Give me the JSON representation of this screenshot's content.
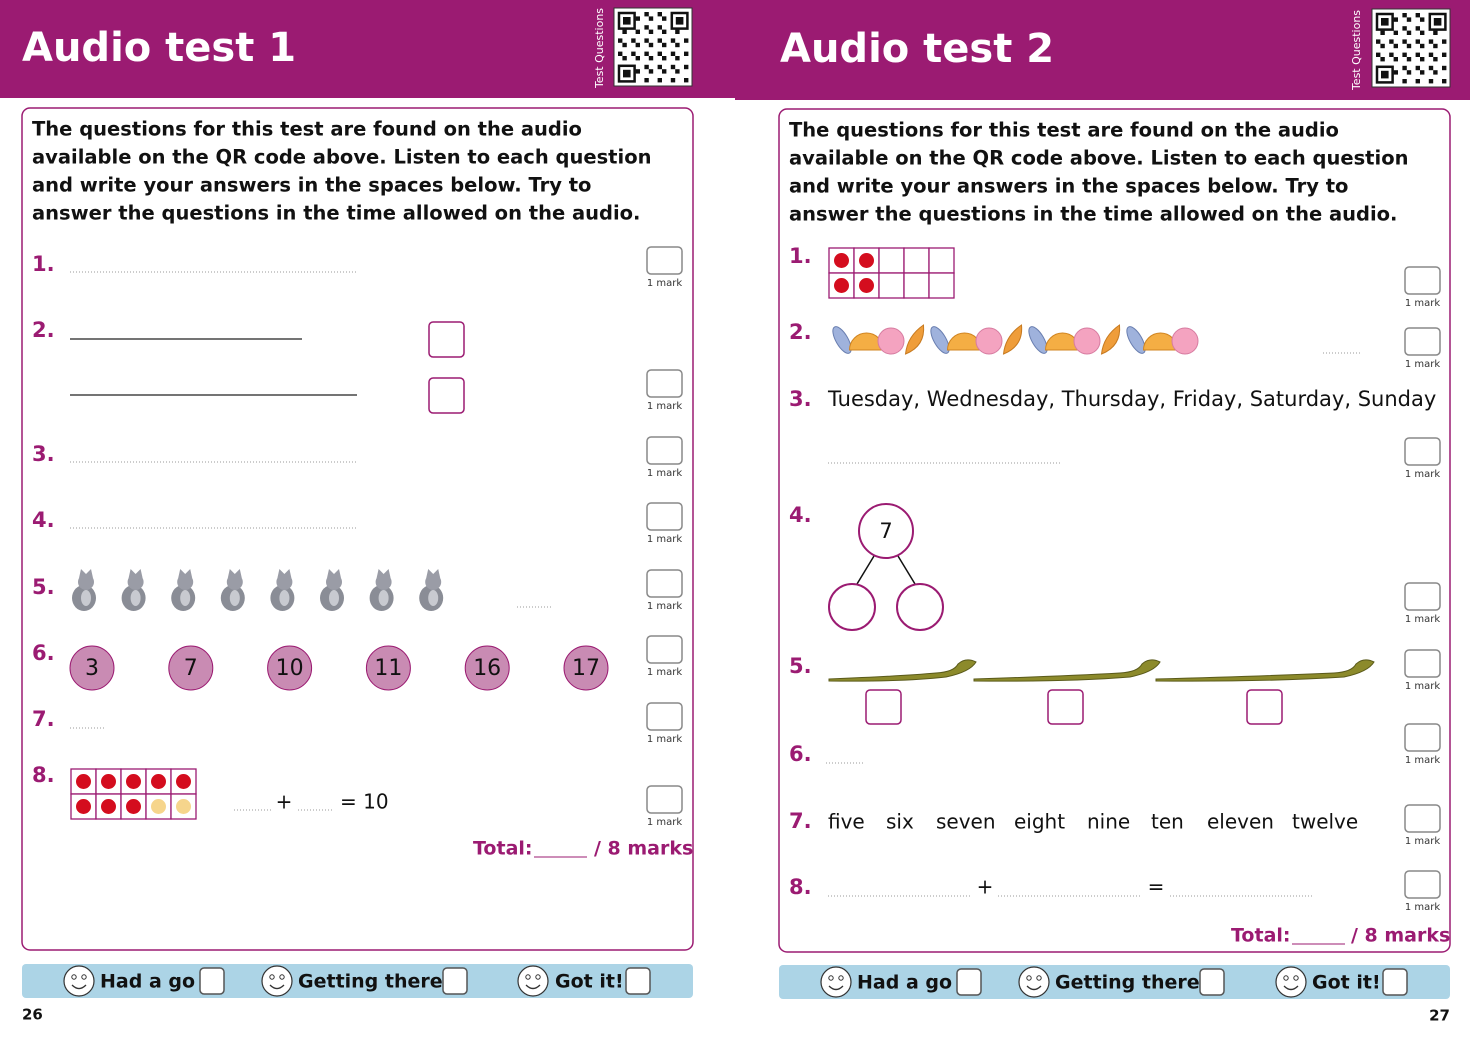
{
  "pages": [
    {
      "title": "Audio test 1",
      "side_label": "Test Questions",
      "instructions": [
        "The questions for this test are found on the audio",
        "available on the QR code above. Listen to each question",
        "and write your answers in the spaces below. Try to",
        "answer the questions in the time allowed on the audio."
      ],
      "questions": [
        {
          "number": "1.",
          "mark": "1 mark"
        },
        {
          "number": "2.",
          "mark": "1 mark"
        },
        {
          "number": "3.",
          "mark": "1 mark"
        },
        {
          "number": "4.",
          "mark": "1 mark"
        },
        {
          "number": "5.",
          "mark": "1 mark"
        },
        {
          "number": "6.",
          "numbers": [
            3,
            7,
            10,
            11,
            16,
            17
          ],
          "mark": "1 mark"
        },
        {
          "number": "7.",
          "mark": "1 mark"
        },
        {
          "number": "8.",
          "plus": "+",
          "equals": "= 10",
          "mark": "1 mark"
        }
      ],
      "total": {
        "label": "Total:",
        "out_of": "/ 8 marks"
      },
      "footer": [
        "Had a go",
        "Getting there",
        "Got it!"
      ],
      "page_number": "26"
    },
    {
      "title": "Audio test 2",
      "side_label": "Test Questions",
      "instructions": [
        "The questions for this test are found on the audio",
        "available on the QR code above. Listen to each question",
        "and write your answers in the spaces below. Try to",
        "answer the questions in the time allowed on the audio."
      ],
      "questions": [
        {
          "number": "1.",
          "mark": "1 mark"
        },
        {
          "number": "2.",
          "mark": "1 mark"
        },
        {
          "number": "3.",
          "sequence": "Tuesday, Wednesday, Thursday, Friday, Saturday, Sunday",
          "mark": "1 mark"
        },
        {
          "number": "4.",
          "whole": 7,
          "mark": "1 mark"
        },
        {
          "number": "5.",
          "mark": "1 mark"
        },
        {
          "number": "6.",
          "mark": "1 mark"
        },
        {
          "number": "7.",
          "words": [
            "five",
            "six",
            "seven",
            "eight",
            "nine",
            "ten",
            "eleven",
            "twelve"
          ],
          "mark": "1 mark"
        },
        {
          "number": "8.",
          "plus": "+",
          "equals": "=",
          "mark": "1 mark"
        }
      ],
      "total": {
        "label": "Total:",
        "out_of": "/ 8 marks"
      },
      "footer": [
        "Had a go",
        "Getting there",
        "Got it!"
      ],
      "page_number": "27"
    }
  ]
}
